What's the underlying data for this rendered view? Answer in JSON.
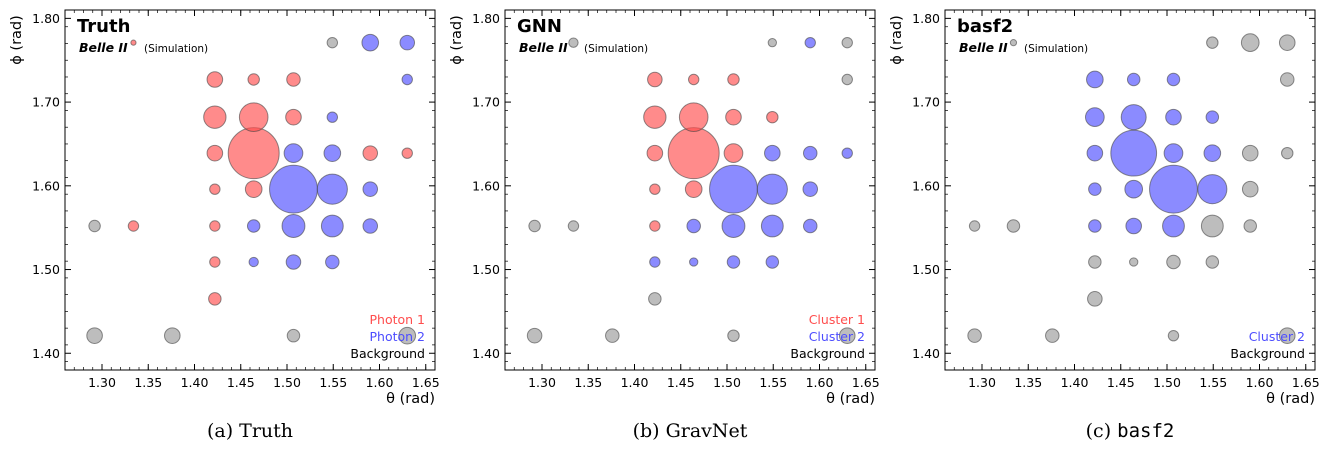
{
  "colors": {
    "photon1": "#ff4d4d",
    "photon2": "#4d4dff",
    "background": "#999999",
    "legend_bg_text": "#000000"
  },
  "axes": {
    "xlabel": "θ (rad)",
    "ylabel": "ϕ (rad)",
    "xlim": [
      1.26,
      1.66
    ],
    "ylim": [
      1.38,
      1.81
    ],
    "xticks": [
      "1.30",
      "1.35",
      "1.40",
      "1.45",
      "1.50",
      "1.55",
      "1.60",
      "1.65"
    ],
    "xtick_values": [
      1.3,
      1.35,
      1.4,
      1.45,
      1.5,
      1.55,
      1.6,
      1.65
    ],
    "yticks": [
      "1.40",
      "1.50",
      "1.60",
      "1.70",
      "1.80"
    ],
    "ytick_values": [
      1.4,
      1.5,
      1.6,
      1.7,
      1.8
    ]
  },
  "experiment_label": "Belle II",
  "simulation_label": "(Simulation)",
  "chart_data": [
    {
      "type": "scatter",
      "title": "Truth",
      "caption_prefix": "(a)",
      "caption": "Truth",
      "caption_mono": false,
      "legend": [
        {
          "label": "Photon 1",
          "color_key": "photon1"
        },
        {
          "label": "Photon 2",
          "color_key": "photon2"
        },
        {
          "label": "Background",
          "color_key": "legend_bg_text"
        }
      ],
      "points": [
        {
          "x": 1.334,
          "y": 1.771,
          "s": 1.0,
          "c": "photon1"
        },
        {
          "x": 1.549,
          "y": 1.771,
          "s": 2.0,
          "c": "background"
        },
        {
          "x": 1.59,
          "y": 1.771,
          "s": 3.2,
          "c": "photon2"
        },
        {
          "x": 1.63,
          "y": 1.771,
          "s": 2.8,
          "c": "photon2"
        },
        {
          "x": 1.422,
          "y": 1.727,
          "s": 3.0,
          "c": "photon1"
        },
        {
          "x": 1.464,
          "y": 1.727,
          "s": 2.2,
          "c": "photon1"
        },
        {
          "x": 1.507,
          "y": 1.727,
          "s": 2.6,
          "c": "photon1"
        },
        {
          "x": 1.63,
          "y": 1.727,
          "s": 2.0,
          "c": "photon2"
        },
        {
          "x": 1.422,
          "y": 1.682,
          "s": 4.3,
          "c": "photon1"
        },
        {
          "x": 1.464,
          "y": 1.682,
          "s": 5.5,
          "c": "photon1"
        },
        {
          "x": 1.507,
          "y": 1.682,
          "s": 3.0,
          "c": "photon1"
        },
        {
          "x": 1.549,
          "y": 1.682,
          "s": 2.0,
          "c": "photon2"
        },
        {
          "x": 1.422,
          "y": 1.639,
          "s": 3.0,
          "c": "photon1"
        },
        {
          "x": 1.464,
          "y": 1.639,
          "s": 9.8,
          "c": "photon1"
        },
        {
          "x": 1.507,
          "y": 1.639,
          "s": 3.6,
          "c": "photon2"
        },
        {
          "x": 1.549,
          "y": 1.639,
          "s": 3.2,
          "c": "photon2"
        },
        {
          "x": 1.59,
          "y": 1.639,
          "s": 2.8,
          "c": "photon1"
        },
        {
          "x": 1.63,
          "y": 1.639,
          "s": 2.0,
          "c": "photon1"
        },
        {
          "x": 1.422,
          "y": 1.596,
          "s": 2.0,
          "c": "photon1"
        },
        {
          "x": 1.464,
          "y": 1.596,
          "s": 3.2,
          "c": "photon1"
        },
        {
          "x": 1.507,
          "y": 1.596,
          "s": 9.2,
          "c": "photon2"
        },
        {
          "x": 1.549,
          "y": 1.596,
          "s": 5.8,
          "c": "photon2"
        },
        {
          "x": 1.59,
          "y": 1.596,
          "s": 2.8,
          "c": "photon2"
        },
        {
          "x": 1.292,
          "y": 1.552,
          "s": 2.2,
          "c": "background"
        },
        {
          "x": 1.334,
          "y": 1.552,
          "s": 2.0,
          "c": "photon1"
        },
        {
          "x": 1.422,
          "y": 1.552,
          "s": 2.0,
          "c": "photon1"
        },
        {
          "x": 1.464,
          "y": 1.552,
          "s": 2.4,
          "c": "photon2"
        },
        {
          "x": 1.507,
          "y": 1.552,
          "s": 4.4,
          "c": "photon2"
        },
        {
          "x": 1.549,
          "y": 1.552,
          "s": 4.2,
          "c": "photon2"
        },
        {
          "x": 1.59,
          "y": 1.552,
          "s": 2.8,
          "c": "photon2"
        },
        {
          "x": 1.422,
          "y": 1.509,
          "s": 2.0,
          "c": "photon1"
        },
        {
          "x": 1.464,
          "y": 1.509,
          "s": 1.8,
          "c": "photon2"
        },
        {
          "x": 1.507,
          "y": 1.509,
          "s": 2.8,
          "c": "photon2"
        },
        {
          "x": 1.549,
          "y": 1.509,
          "s": 2.6,
          "c": "photon2"
        },
        {
          "x": 1.422,
          "y": 1.465,
          "s": 2.4,
          "c": "photon1"
        },
        {
          "x": 1.292,
          "y": 1.421,
          "s": 3.0,
          "c": "background"
        },
        {
          "x": 1.376,
          "y": 1.421,
          "s": 3.0,
          "c": "background"
        },
        {
          "x": 1.507,
          "y": 1.421,
          "s": 2.4,
          "c": "background"
        },
        {
          "x": 1.63,
          "y": 1.421,
          "s": 3.2,
          "c": "background"
        }
      ]
    },
    {
      "type": "scatter",
      "title": "GNN",
      "caption_prefix": "(b)",
      "caption": "GravNet",
      "caption_mono": false,
      "legend": [
        {
          "label": "Cluster 1",
          "color_key": "photon1"
        },
        {
          "label": "Cluster 2",
          "color_key": "photon2"
        },
        {
          "label": "Background",
          "color_key": "legend_bg_text"
        }
      ],
      "points": [
        {
          "x": 1.334,
          "y": 1.771,
          "s": 1.8,
          "c": "background"
        },
        {
          "x": 1.549,
          "y": 1.771,
          "s": 1.6,
          "c": "background"
        },
        {
          "x": 1.59,
          "y": 1.771,
          "s": 2.0,
          "c": "photon2"
        },
        {
          "x": 1.63,
          "y": 1.771,
          "s": 2.0,
          "c": "background"
        },
        {
          "x": 1.422,
          "y": 1.727,
          "s": 2.8,
          "c": "photon1"
        },
        {
          "x": 1.464,
          "y": 1.727,
          "s": 2.0,
          "c": "photon1"
        },
        {
          "x": 1.507,
          "y": 1.727,
          "s": 2.2,
          "c": "photon1"
        },
        {
          "x": 1.63,
          "y": 1.727,
          "s": 2.0,
          "c": "background"
        },
        {
          "x": 1.422,
          "y": 1.682,
          "s": 4.3,
          "c": "photon1"
        },
        {
          "x": 1.464,
          "y": 1.682,
          "s": 5.5,
          "c": "photon1"
        },
        {
          "x": 1.507,
          "y": 1.682,
          "s": 3.0,
          "c": "photon1"
        },
        {
          "x": 1.549,
          "y": 1.682,
          "s": 2.2,
          "c": "photon1"
        },
        {
          "x": 1.422,
          "y": 1.639,
          "s": 3.0,
          "c": "photon1"
        },
        {
          "x": 1.464,
          "y": 1.639,
          "s": 9.8,
          "c": "photon1"
        },
        {
          "x": 1.507,
          "y": 1.639,
          "s": 3.6,
          "c": "photon1"
        },
        {
          "x": 1.549,
          "y": 1.639,
          "s": 3.0,
          "c": "photon2"
        },
        {
          "x": 1.59,
          "y": 1.639,
          "s": 2.6,
          "c": "photon2"
        },
        {
          "x": 1.63,
          "y": 1.639,
          "s": 2.0,
          "c": "photon2"
        },
        {
          "x": 1.422,
          "y": 1.596,
          "s": 2.0,
          "c": "photon1"
        },
        {
          "x": 1.464,
          "y": 1.596,
          "s": 3.2,
          "c": "photon1"
        },
        {
          "x": 1.507,
          "y": 1.596,
          "s": 9.2,
          "c": "photon2"
        },
        {
          "x": 1.549,
          "y": 1.596,
          "s": 5.8,
          "c": "photon2"
        },
        {
          "x": 1.59,
          "y": 1.596,
          "s": 2.8,
          "c": "photon2"
        },
        {
          "x": 1.292,
          "y": 1.552,
          "s": 2.2,
          "c": "background"
        },
        {
          "x": 1.334,
          "y": 1.552,
          "s": 2.0,
          "c": "background"
        },
        {
          "x": 1.422,
          "y": 1.552,
          "s": 2.0,
          "c": "photon1"
        },
        {
          "x": 1.464,
          "y": 1.552,
          "s": 2.6,
          "c": "photon2"
        },
        {
          "x": 1.507,
          "y": 1.552,
          "s": 4.4,
          "c": "photon2"
        },
        {
          "x": 1.549,
          "y": 1.552,
          "s": 4.2,
          "c": "photon2"
        },
        {
          "x": 1.59,
          "y": 1.552,
          "s": 2.6,
          "c": "photon2"
        },
        {
          "x": 1.422,
          "y": 1.509,
          "s": 2.0,
          "c": "photon2"
        },
        {
          "x": 1.464,
          "y": 1.509,
          "s": 1.6,
          "c": "photon2"
        },
        {
          "x": 1.507,
          "y": 1.509,
          "s": 2.4,
          "c": "photon2"
        },
        {
          "x": 1.549,
          "y": 1.509,
          "s": 2.4,
          "c": "photon2"
        },
        {
          "x": 1.422,
          "y": 1.465,
          "s": 2.4,
          "c": "background"
        },
        {
          "x": 1.292,
          "y": 1.421,
          "s": 2.8,
          "c": "background"
        },
        {
          "x": 1.376,
          "y": 1.421,
          "s": 2.6,
          "c": "background"
        },
        {
          "x": 1.507,
          "y": 1.421,
          "s": 2.2,
          "c": "background"
        },
        {
          "x": 1.63,
          "y": 1.421,
          "s": 3.0,
          "c": "background"
        }
      ]
    },
    {
      "type": "scatter",
      "title": "basf2",
      "caption_prefix": "(c)",
      "caption": "basf2",
      "caption_mono": true,
      "legend": [
        {
          "label": "Cluster 2",
          "color_key": "photon2"
        },
        {
          "label": "Background",
          "color_key": "legend_bg_text"
        }
      ],
      "points": [
        {
          "x": 1.334,
          "y": 1.771,
          "s": 1.2,
          "c": "background"
        },
        {
          "x": 1.549,
          "y": 1.771,
          "s": 2.2,
          "c": "background"
        },
        {
          "x": 1.59,
          "y": 1.771,
          "s": 3.4,
          "c": "background"
        },
        {
          "x": 1.63,
          "y": 1.771,
          "s": 3.0,
          "c": "background"
        },
        {
          "x": 1.422,
          "y": 1.727,
          "s": 3.2,
          "c": "photon2"
        },
        {
          "x": 1.464,
          "y": 1.727,
          "s": 2.4,
          "c": "photon2"
        },
        {
          "x": 1.507,
          "y": 1.727,
          "s": 2.4,
          "c": "photon2"
        },
        {
          "x": 1.63,
          "y": 1.727,
          "s": 2.6,
          "c": "background"
        },
        {
          "x": 1.422,
          "y": 1.682,
          "s": 3.6,
          "c": "photon2"
        },
        {
          "x": 1.464,
          "y": 1.682,
          "s": 4.8,
          "c": "photon2"
        },
        {
          "x": 1.507,
          "y": 1.682,
          "s": 3.0,
          "c": "photon2"
        },
        {
          "x": 1.549,
          "y": 1.682,
          "s": 2.4,
          "c": "photon2"
        },
        {
          "x": 1.422,
          "y": 1.639,
          "s": 3.0,
          "c": "photon2"
        },
        {
          "x": 1.464,
          "y": 1.639,
          "s": 8.8,
          "c": "photon2"
        },
        {
          "x": 1.507,
          "y": 1.639,
          "s": 3.6,
          "c": "photon2"
        },
        {
          "x": 1.549,
          "y": 1.639,
          "s": 3.2,
          "c": "photon2"
        },
        {
          "x": 1.59,
          "y": 1.639,
          "s": 3.0,
          "c": "background"
        },
        {
          "x": 1.63,
          "y": 1.639,
          "s": 2.2,
          "c": "background"
        },
        {
          "x": 1.422,
          "y": 1.596,
          "s": 2.4,
          "c": "photon2"
        },
        {
          "x": 1.464,
          "y": 1.596,
          "s": 3.4,
          "c": "photon2"
        },
        {
          "x": 1.507,
          "y": 1.596,
          "s": 9.2,
          "c": "photon2"
        },
        {
          "x": 1.549,
          "y": 1.596,
          "s": 5.6,
          "c": "photon2"
        },
        {
          "x": 1.59,
          "y": 1.596,
          "s": 3.0,
          "c": "background"
        },
        {
          "x": 1.292,
          "y": 1.552,
          "s": 2.0,
          "c": "background"
        },
        {
          "x": 1.334,
          "y": 1.552,
          "s": 2.4,
          "c": "background"
        },
        {
          "x": 1.422,
          "y": 1.552,
          "s": 2.4,
          "c": "photon2"
        },
        {
          "x": 1.464,
          "y": 1.552,
          "s": 3.0,
          "c": "photon2"
        },
        {
          "x": 1.507,
          "y": 1.552,
          "s": 4.2,
          "c": "photon2"
        },
        {
          "x": 1.549,
          "y": 1.552,
          "s": 4.2,
          "c": "background"
        },
        {
          "x": 1.59,
          "y": 1.552,
          "s": 2.4,
          "c": "background"
        },
        {
          "x": 1.422,
          "y": 1.509,
          "s": 2.4,
          "c": "background"
        },
        {
          "x": 1.464,
          "y": 1.509,
          "s": 1.6,
          "c": "background"
        },
        {
          "x": 1.507,
          "y": 1.509,
          "s": 2.6,
          "c": "background"
        },
        {
          "x": 1.549,
          "y": 1.509,
          "s": 2.4,
          "c": "background"
        },
        {
          "x": 1.422,
          "y": 1.465,
          "s": 2.8,
          "c": "background"
        },
        {
          "x": 1.292,
          "y": 1.421,
          "s": 2.6,
          "c": "background"
        },
        {
          "x": 1.376,
          "y": 1.421,
          "s": 2.6,
          "c": "background"
        },
        {
          "x": 1.507,
          "y": 1.421,
          "s": 2.0,
          "c": "background"
        },
        {
          "x": 1.63,
          "y": 1.421,
          "s": 3.0,
          "c": "background"
        }
      ]
    }
  ]
}
